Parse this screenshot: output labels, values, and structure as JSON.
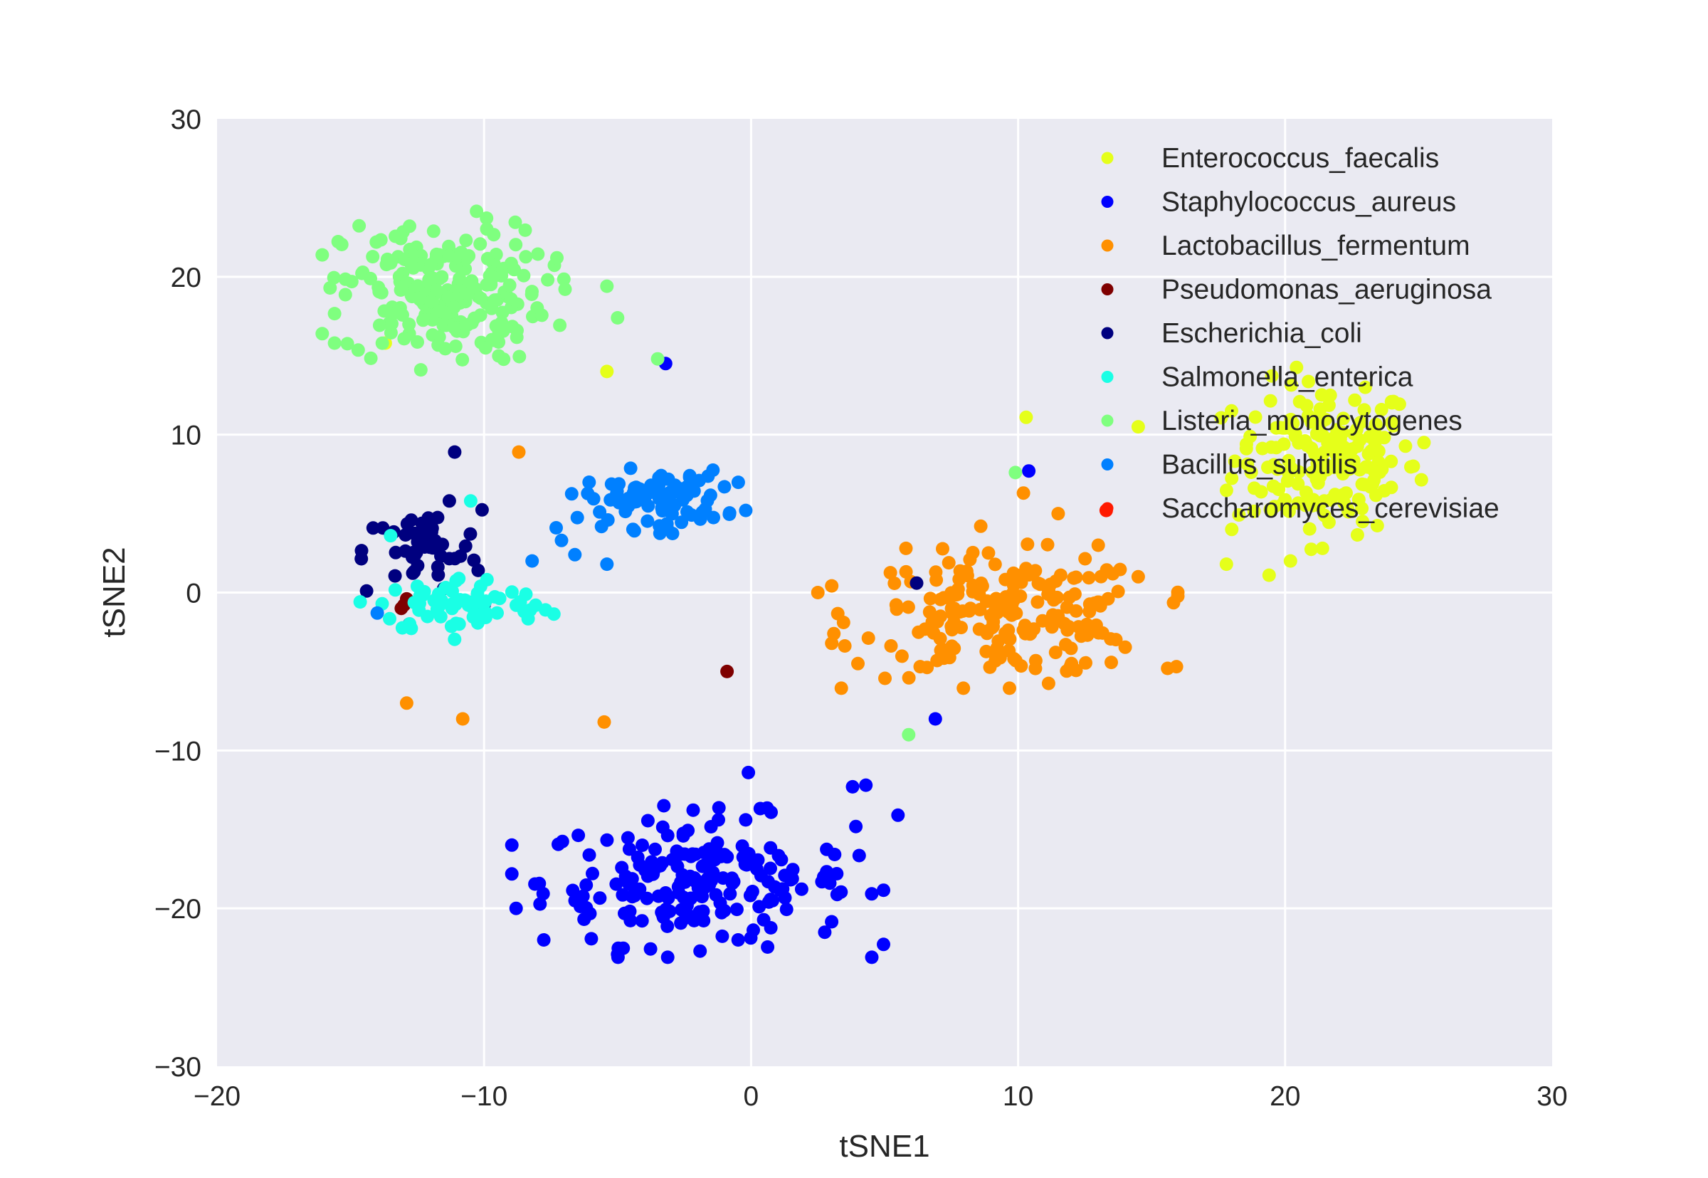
{
  "chart_data": {
    "type": "scatter",
    "title": "",
    "xlabel": "tSNE1",
    "ylabel": "tSNE2",
    "xlim": [
      -20,
      30
    ],
    "ylim": [
      -30,
      30
    ],
    "xticks": [
      -20,
      -10,
      0,
      10,
      20,
      30
    ],
    "yticks": [
      -30,
      -20,
      -10,
      0,
      10,
      20,
      30
    ],
    "xtick_labels": [
      "−20",
      "−10",
      "0",
      "10",
      "20",
      "30"
    ],
    "ytick_labels": [
      "−30",
      "−20",
      "−10",
      "0",
      "10",
      "20",
      "30"
    ],
    "grid": true,
    "background": "#EAEAF2",
    "legend_position": "top-right",
    "series": [
      {
        "name": "Enterococcus_faecalis",
        "color": "#E5FF1A",
        "cluster": {
          "center": [
            21.5,
            8.5
          ],
          "spread": [
            1.7,
            2.4
          ],
          "n": 170
        },
        "points": [
          [
            10.3,
            11.1
          ],
          [
            14.5,
            10.5
          ],
          [
            -5.4,
            14.0
          ],
          [
            -13.7,
            15.8
          ],
          [
            17.8,
            1.8
          ],
          [
            19.4,
            1.1
          ],
          [
            20.2,
            2.0
          ],
          [
            21.4,
            2.8
          ],
          [
            18.0,
            4.0
          ],
          [
            22.9,
            4.5
          ],
          [
            24.8,
            8.0
          ],
          [
            25.2,
            9.5
          ],
          [
            23.0,
            13.0
          ]
        ]
      },
      {
        "name": "Staphylococcus_aureus",
        "color": "#0000FF",
        "cluster": {
          "center": [
            -2.0,
            -18.3
          ],
          "spread": [
            2.9,
            2.0
          ],
          "n": 200
        },
        "points": [
          [
            -8.8,
            -20.0
          ],
          [
            10.4,
            7.7
          ],
          [
            -3.2,
            14.5
          ],
          [
            6.9,
            -8.0
          ],
          [
            5.5,
            -14.1
          ],
          [
            4.3,
            -12.2
          ],
          [
            3.8,
            -12.3
          ],
          [
            -0.1,
            -11.4
          ]
        ]
      },
      {
        "name": "Lactobacillus_fermentum",
        "color": "#FF9000",
        "cluster": {
          "center": [
            9.5,
            -1.5
          ],
          "spread": [
            2.7,
            1.9
          ],
          "n": 200
        },
        "points": [
          [
            -8.7,
            8.9
          ],
          [
            -12.9,
            -7.0
          ],
          [
            -10.8,
            -8.0
          ],
          [
            -5.5,
            -8.2
          ],
          [
            15.6,
            -4.8
          ],
          [
            2.5,
            0.0
          ],
          [
            3.1,
            -2.6
          ],
          [
            4.0,
            -4.5
          ],
          [
            5.8,
            2.8
          ],
          [
            8.6,
            4.2
          ],
          [
            12.0,
            -4.5
          ],
          [
            13.0,
            3.0
          ],
          [
            14.5,
            1.0
          ],
          [
            10.2,
            6.3
          ],
          [
            11.5,
            5.0
          ]
        ]
      },
      {
        "name": "Pseudomonas_aeruginosa",
        "color": "#7F0000",
        "cluster": null,
        "points": [
          [
            -0.9,
            -5.0
          ],
          [
            -13.0,
            -0.8
          ],
          [
            -12.9,
            -0.4
          ],
          [
            -13.1,
            -1.0
          ]
        ]
      },
      {
        "name": "Escherichia_coli",
        "color": "#00007F",
        "cluster": {
          "center": [
            -12.3,
            2.6
          ],
          "spread": [
            1.1,
            1.3
          ],
          "n": 50
        },
        "points": [
          [
            -11.1,
            8.9
          ],
          [
            -14.4,
            0.1
          ],
          [
            -10.0,
            -0.8
          ],
          [
            -12.8,
            -2.0
          ],
          [
            -11.3,
            5.8
          ],
          [
            6.2,
            0.6
          ]
        ]
      },
      {
        "name": "Salmonella_enterica",
        "color": "#1AFFE5",
        "cluster": {
          "center": [
            -10.8,
            -0.8
          ],
          "spread": [
            1.6,
            0.9
          ],
          "n": 70
        },
        "points": [
          [
            -10.5,
            5.8
          ],
          [
            -7.7,
            -1.1
          ],
          [
            -13.5,
            3.6
          ],
          [
            -12.5,
            0.4
          ],
          [
            -8.5,
            -1.2
          ]
        ]
      },
      {
        "name": "Listeria_monocytogenes",
        "color": "#7FFF7F",
        "cluster": {
          "center": [
            -11.5,
            19.0
          ],
          "spread": [
            1.9,
            2.2
          ],
          "n": 220
        },
        "points": [
          [
            -3.5,
            14.8
          ],
          [
            5.9,
            -9.0
          ],
          [
            9.9,
            7.6
          ],
          [
            -15.6,
            15.8
          ],
          [
            -5.0,
            17.4
          ],
          [
            -5.4,
            19.4
          ]
        ]
      },
      {
        "name": "Bacillus_subtilis",
        "color": "#0080FF",
        "cluster": {
          "center": [
            -3.6,
            5.9
          ],
          "spread": [
            1.3,
            0.9
          ],
          "n": 90
        },
        "points": [
          [
            -0.2,
            5.2
          ],
          [
            -8.2,
            2.0
          ],
          [
            -5.4,
            1.8
          ],
          [
            -6.6,
            2.4
          ],
          [
            -7.1,
            3.3
          ],
          [
            -7.3,
            4.1
          ],
          [
            -14.0,
            -1.3
          ],
          [
            -2.3,
            7.3
          ],
          [
            -1.0,
            6.7
          ]
        ]
      },
      {
        "name": "Saccharomyces_cerevisiae",
        "color": "#FF1A00",
        "cluster": null,
        "points": [
          [
            13.3,
            5.2
          ]
        ]
      }
    ]
  }
}
